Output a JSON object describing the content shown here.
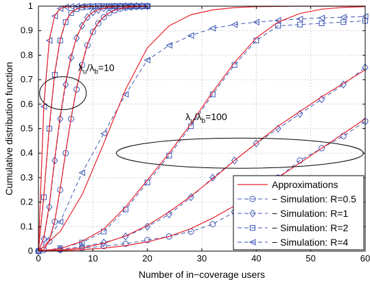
{
  "chart_data": {
    "type": "line",
    "xlabel": "Number of in−coverage users",
    "ylabel": "Cumulative distribution function",
    "xlim": [
      0,
      60
    ],
    "ylim": [
      0,
      1
    ],
    "x_ticks": [
      "0",
      "10",
      "20",
      "30",
      "40",
      "50",
      "60"
    ],
    "y_ticks": [
      "0",
      "0.1",
      "0.2",
      "0.3",
      "0.4",
      "0.5",
      "0.6",
      "0.7",
      "0.8",
      "0.9",
      "1"
    ],
    "grid": true,
    "legend_position": "bottom-right",
    "legend": [
      {
        "label": "Approximations",
        "style": "solid",
        "marker": "none",
        "color": "#e8202a"
      },
      {
        "label": "− Simulation: R=0.5",
        "style": "dashed",
        "marker": "circle",
        "color": "#3b55b5"
      },
      {
        "label": "− Simulation: R=1",
        "style": "dashed",
        "marker": "diamond",
        "color": "#3b55b5"
      },
      {
        "label": "− Simulation: R=2",
        "style": "dashed",
        "marker": "square",
        "color": "#3b55b5"
      },
      {
        "label": "− Simulation: R=4",
        "style": "dashed",
        "marker": "triangle-left",
        "color": "#3b55b5"
      }
    ],
    "annotations": [
      {
        "base": "λ",
        "sub1": "u",
        "mid": "/λ",
        "sub2": "b",
        "tail": "=10",
        "x": 7.3,
        "y": 0.735
      },
      {
        "base": "λ",
        "sub1": "u",
        "mid": "/λ",
        "sub2": "b",
        "tail": "=100",
        "x": 27.0,
        "y": 0.535
      }
    ],
    "series": [
      {
        "group": "10",
        "marker": "circle",
        "x": [
          0,
          1,
          2,
          3,
          4,
          5,
          6,
          7,
          8,
          9,
          10,
          11,
          12,
          13,
          14,
          15,
          16,
          17,
          18,
          19,
          20
        ],
        "values": [
          0.0,
          0.005,
          0.04,
          0.12,
          0.25,
          0.4,
          0.54,
          0.66,
          0.76,
          0.84,
          0.895,
          0.93,
          0.955,
          0.972,
          0.983,
          0.99,
          0.994,
          0.996,
          0.998,
          0.999,
          1.0
        ]
      },
      {
        "group": "10",
        "marker": "diamond",
        "x": [
          0,
          1,
          2,
          3,
          4,
          5,
          6,
          7,
          8,
          9,
          10,
          11,
          12,
          13,
          14,
          15,
          16,
          17,
          18,
          19,
          20
        ],
        "values": [
          0.0,
          0.05,
          0.18,
          0.37,
          0.54,
          0.68,
          0.79,
          0.87,
          0.92,
          0.955,
          0.975,
          0.985,
          0.992,
          0.996,
          0.998,
          0.999,
          1.0,
          1.0,
          1.0,
          1.0,
          1.0
        ]
      },
      {
        "group": "10",
        "marker": "square",
        "x": [
          0,
          1,
          2,
          3,
          4,
          5,
          6,
          7,
          8,
          9,
          10,
          11,
          12,
          13,
          14,
          15,
          16,
          17,
          18,
          19,
          20
        ],
        "values": [
          0.0,
          0.22,
          0.5,
          0.72,
          0.86,
          0.935,
          0.972,
          0.988,
          0.995,
          0.998,
          0.999,
          1.0,
          1.0,
          1.0,
          1.0,
          1.0,
          1.0,
          1.0,
          1.0,
          1.0,
          1.0
        ]
      },
      {
        "group": "10",
        "marker": "triangle-left",
        "x": [
          0,
          1,
          2,
          3,
          4,
          5,
          6,
          7,
          8,
          9,
          10,
          11,
          12,
          13,
          14,
          15,
          16,
          17,
          18,
          19,
          20
        ],
        "values": [
          0.0,
          0.59,
          0.86,
          0.96,
          0.99,
          0.997,
          0.999,
          1.0,
          1.0,
          1.0,
          1.0,
          1.0,
          1.0,
          1.0,
          1.0,
          1.0,
          1.0,
          1.0,
          1.0,
          1.0,
          1.0
        ]
      },
      {
        "group": "100",
        "marker": "circle",
        "x": [
          0,
          4,
          8,
          12,
          16,
          20,
          24,
          28,
          32,
          36,
          40,
          44,
          48,
          52,
          56,
          60
        ],
        "values": [
          0.0,
          0.005,
          0.012,
          0.02,
          0.03,
          0.045,
          0.06,
          0.08,
          0.11,
          0.16,
          0.23,
          0.3,
          0.37,
          0.42,
          0.47,
          0.53
        ]
      },
      {
        "group": "100",
        "marker": "diamond",
        "x": [
          0,
          4,
          8,
          12,
          16,
          20,
          24,
          28,
          32,
          36,
          40,
          44,
          48,
          52,
          56,
          60
        ],
        "values": [
          0.0,
          0.008,
          0.018,
          0.035,
          0.06,
          0.1,
          0.15,
          0.22,
          0.3,
          0.37,
          0.44,
          0.5,
          0.56,
          0.62,
          0.68,
          0.75
        ]
      },
      {
        "group": "100",
        "marker": "square",
        "x": [
          0,
          4,
          8,
          12,
          16,
          20,
          24,
          28,
          32,
          36,
          40,
          44,
          48,
          52,
          56,
          60
        ],
        "values": [
          0.0,
          0.012,
          0.035,
          0.08,
          0.17,
          0.28,
          0.39,
          0.51,
          0.64,
          0.76,
          0.86,
          0.92,
          0.925,
          0.93,
          0.935,
          0.94
        ]
      },
      {
        "group": "100",
        "marker": "triangle-left",
        "x": [
          0,
          4,
          8,
          12,
          16,
          20,
          24,
          28,
          32,
          36,
          40,
          44,
          48,
          52,
          56,
          60
        ],
        "values": [
          0.0,
          0.12,
          0.32,
          0.48,
          0.64,
          0.78,
          0.84,
          0.88,
          0.91,
          0.925,
          0.935,
          0.942,
          0.948,
          0.952,
          0.955,
          0.958
        ]
      }
    ],
    "approximations": [
      {
        "x": [
          0,
          1,
          2,
          3,
          4,
          5,
          6,
          7,
          8,
          9,
          10,
          11,
          12,
          13,
          14,
          15,
          16,
          17,
          18,
          19,
          20
        ],
        "values": [
          0.0,
          0.007,
          0.045,
          0.125,
          0.255,
          0.405,
          0.545,
          0.665,
          0.765,
          0.845,
          0.898,
          0.933,
          0.957,
          0.973,
          0.984,
          0.99,
          0.994,
          0.997,
          0.998,
          0.999,
          1.0
        ]
      },
      {
        "x": [
          0,
          1,
          2,
          3,
          4,
          5,
          6,
          7,
          8,
          9,
          10,
          11,
          12,
          13,
          14,
          15,
          16,
          17,
          18,
          19,
          20
        ],
        "values": [
          0.0,
          0.055,
          0.19,
          0.38,
          0.55,
          0.69,
          0.795,
          0.872,
          0.922,
          0.956,
          0.976,
          0.986,
          0.992,
          0.996,
          0.998,
          0.999,
          1.0,
          1.0,
          1.0,
          1.0,
          1.0
        ]
      },
      {
        "x": [
          0,
          1,
          2,
          3,
          4,
          5,
          6,
          7,
          8,
          9,
          10,
          11,
          12,
          13,
          14,
          15,
          16,
          17,
          18,
          19,
          20
        ],
        "values": [
          0.0,
          0.23,
          0.51,
          0.73,
          0.865,
          0.938,
          0.973,
          0.989,
          0.995,
          0.998,
          0.999,
          1.0,
          1.0,
          1.0,
          1.0,
          1.0,
          1.0,
          1.0,
          1.0,
          1.0,
          1.0
        ]
      },
      {
        "x": [
          0,
          1,
          2,
          3,
          4,
          5,
          6,
          7,
          8,
          9,
          10,
          11,
          12,
          13,
          14,
          15,
          16,
          17,
          18,
          19,
          20
        ],
        "values": [
          0.0,
          0.6,
          0.865,
          0.962,
          0.99,
          0.997,
          0.999,
          1.0,
          1.0,
          1.0,
          1.0,
          1.0,
          1.0,
          1.0,
          1.0,
          1.0,
          1.0,
          1.0,
          1.0,
          1.0,
          1.0
        ]
      },
      {
        "x": [
          0,
          4,
          8,
          12,
          16,
          20,
          24,
          28,
          32,
          36,
          40,
          44,
          48,
          52,
          56,
          60
        ],
        "values": [
          0.0,
          0.002,
          0.006,
          0.012,
          0.022,
          0.038,
          0.06,
          0.092,
          0.135,
          0.185,
          0.24,
          0.3,
          0.36,
          0.42,
          0.48,
          0.54
        ]
      },
      {
        "x": [
          0,
          4,
          8,
          12,
          16,
          20,
          24,
          28,
          32,
          36,
          40,
          44,
          48,
          52,
          56,
          60
        ],
        "values": [
          0.0,
          0.004,
          0.013,
          0.032,
          0.062,
          0.105,
          0.16,
          0.225,
          0.295,
          0.37,
          0.44,
          0.51,
          0.57,
          0.63,
          0.685,
          0.74
        ]
      },
      {
        "x": [
          0,
          4,
          8,
          12,
          16,
          20,
          24,
          28,
          32,
          36,
          40,
          44,
          48,
          52,
          56,
          60
        ],
        "values": [
          0.0,
          0.01,
          0.04,
          0.09,
          0.18,
          0.29,
          0.4,
          0.52,
          0.65,
          0.77,
          0.87,
          0.935,
          0.97,
          0.988,
          0.995,
          0.998
        ]
      },
      {
        "x": [
          0,
          4,
          8,
          12,
          16,
          20,
          24,
          28,
          32,
          36,
          40,
          44,
          48,
          52,
          56,
          60
        ],
        "values": [
          0.0,
          0.08,
          0.23,
          0.44,
          0.66,
          0.83,
          0.92,
          0.965,
          0.985,
          0.994,
          0.998,
          0.999,
          1.0,
          1.0,
          1.0,
          1.0
        ]
      }
    ],
    "colors": {
      "approximation": "#e8202a",
      "simulation": "#3b55b5",
      "grid": "#b0b0b0"
    }
  }
}
